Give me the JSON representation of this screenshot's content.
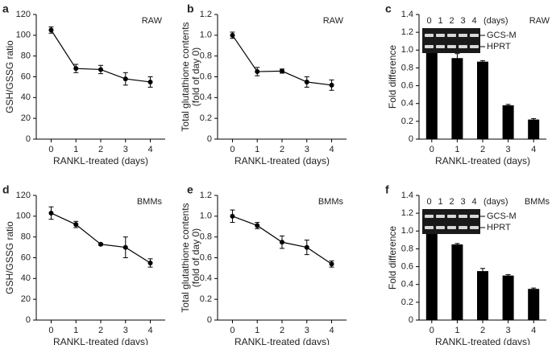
{
  "chart_data": [
    {
      "type": "line",
      "panel": "a",
      "label": "RAW",
      "ylabel": [
        "GSH/GSSG ratio"
      ],
      "xlabel": "RANKL-treated (days)",
      "x": [
        0,
        1,
        2,
        3,
        4
      ],
      "xlim": [
        -0.6,
        4.6
      ],
      "xticks": [
        0,
        1,
        2,
        3,
        4
      ],
      "values": [
        105,
        68,
        67,
        58,
        55
      ],
      "errors": [
        3,
        4,
        4,
        6,
        5
      ],
      "ylim": [
        0,
        120
      ],
      "yticks": [
        0,
        20,
        40,
        60,
        80,
        100,
        120
      ],
      "color": "#000000"
    },
    {
      "type": "line",
      "panel": "b",
      "label": "RAW",
      "ylabel": [
        "Total glutathione contents",
        "(fold of day 0)"
      ],
      "xlabel": "RANKL-treated (days)",
      "x": [
        0,
        1,
        2,
        3,
        4
      ],
      "xlim": [
        -0.6,
        4.6
      ],
      "xticks": [
        0,
        1,
        2,
        3,
        4
      ],
      "values": [
        1.0,
        0.65,
        0.655,
        0.55,
        0.52
      ],
      "errors": [
        0.03,
        0.04,
        0.02,
        0.05,
        0.05
      ],
      "ylim": [
        0,
        1.2
      ],
      "yticks": [
        0,
        0.2,
        0.4,
        0.6,
        0.8,
        {
          "value": 1,
          "label": "1.0"
        },
        1.2
      ],
      "color": "#000000"
    },
    {
      "type": "bar",
      "panel": "c",
      "label": "RAW",
      "ylabel": [
        "Fold difference"
      ],
      "xlabel": "RANKL-treated (days)",
      "categories": [
        "0",
        "1",
        "2",
        "3",
        "4"
      ],
      "values": [
        1.0,
        0.91,
        0.87,
        0.38,
        0.22
      ],
      "errors": [
        0.01,
        0.05,
        0.01,
        0.01,
        0.01
      ],
      "ylim": [
        0,
        1.4
      ],
      "yticks": [
        0,
        0.2,
        0.4,
        0.6,
        0.8,
        {
          "value": 1,
          "label": "1.0"
        },
        1.2,
        1.4
      ],
      "color": "#000000",
      "gel": {
        "lanes": [
          "0",
          "1",
          "2",
          "3",
          "4"
        ],
        "unit": "(days)",
        "bands": [
          "GCS-M",
          "HPRT"
        ]
      }
    },
    {
      "type": "line",
      "panel": "d",
      "label": "BMMs",
      "ylabel": [
        "GSH/GSSG ratio"
      ],
      "xlabel": "RANKL-treated (days)",
      "x": [
        0,
        1,
        2,
        3,
        4
      ],
      "xlim": [
        -0.6,
        4.6
      ],
      "xticks": [
        0,
        1,
        2,
        3,
        4
      ],
      "values": [
        103,
        92,
        73,
        70,
        55
      ],
      "errors": [
        6,
        3,
        1,
        10,
        4
      ],
      "ylim": [
        0,
        120
      ],
      "yticks": [
        0,
        20,
        40,
        60,
        80,
        100,
        120
      ],
      "color": "#000000"
    },
    {
      "type": "line",
      "panel": "e",
      "label": "BMMs",
      "ylabel": [
        "Total glutathione contents",
        "(fold of day 0)"
      ],
      "xlabel": "RANKL-treated (days)",
      "x": [
        0,
        1,
        2,
        3,
        4
      ],
      "xlim": [
        -0.6,
        4.6
      ],
      "xticks": [
        0,
        1,
        2,
        3,
        4
      ],
      "values": [
        1.0,
        0.91,
        0.75,
        0.7,
        0.54
      ],
      "errors": [
        0.06,
        0.03,
        0.06,
        0.07,
        0.03
      ],
      "ylim": [
        0,
        1.2
      ],
      "yticks": [
        0,
        0.2,
        0.4,
        0.6,
        0.8,
        {
          "value": 1,
          "label": "1.0"
        },
        1.2
      ],
      "color": "#000000"
    },
    {
      "type": "bar",
      "panel": "f",
      "label": "BMMs",
      "ylabel": [
        "Fold difference"
      ],
      "xlabel": "RANKL-treated (days)",
      "categories": [
        "0",
        "1",
        "2",
        "3",
        "4"
      ],
      "values": [
        1.0,
        0.85,
        0.55,
        0.5,
        0.35
      ],
      "errors": [
        0.01,
        0.01,
        0.03,
        0.01,
        0.01
      ],
      "ylim": [
        0,
        1.4
      ],
      "yticks": [
        0,
        0.2,
        0.4,
        0.6,
        0.8,
        {
          "value": 1,
          "label": "1.0"
        },
        1.2,
        1.4
      ],
      "color": "#000000",
      "gel": {
        "lanes": [
          "0",
          "1",
          "2",
          "3",
          "4"
        ],
        "unit": "(days)",
        "bands": [
          "GCS-M",
          "HPRT"
        ]
      }
    }
  ]
}
